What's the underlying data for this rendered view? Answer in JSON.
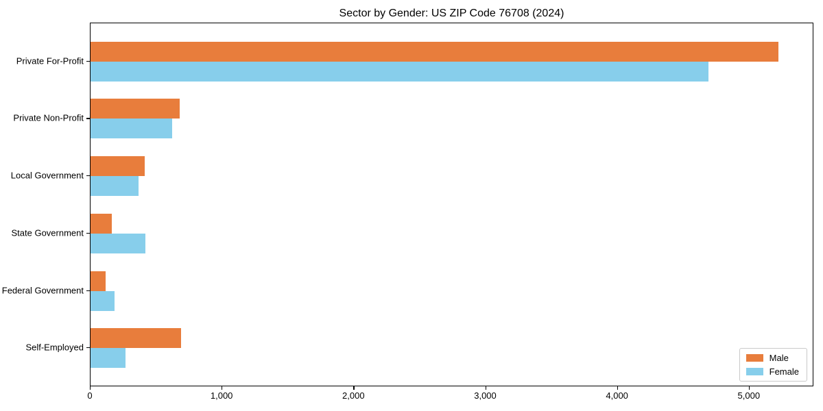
{
  "chart_data": {
    "type": "bar",
    "orientation": "horizontal",
    "title": "Sector by Gender: US ZIP Code 76708 (2024)",
    "categories": [
      "Private For-Profit",
      "Private Non-Profit",
      "Local Government",
      "State Government",
      "Federal Government",
      "Self-Employed"
    ],
    "series": [
      {
        "name": "Male",
        "color": "#e87d3c",
        "values": [
          5220,
          675,
          410,
          160,
          115,
          685
        ]
      },
      {
        "name": "Female",
        "color": "#87ceeb",
        "values": [
          4690,
          620,
          365,
          415,
          180,
          265
        ]
      }
    ],
    "xlim": [
      0,
      5490
    ],
    "xticks": [
      0,
      1000,
      2000,
      3000,
      4000,
      5000
    ],
    "xtick_labels": [
      "0",
      "1,000",
      "2,000",
      "3,000",
      "4,000",
      "5,000"
    ],
    "xlabel": "",
    "ylabel": "",
    "grid": false,
    "legend_position": "lower right",
    "axis_color": "#000000",
    "background_color": "#ffffff"
  }
}
